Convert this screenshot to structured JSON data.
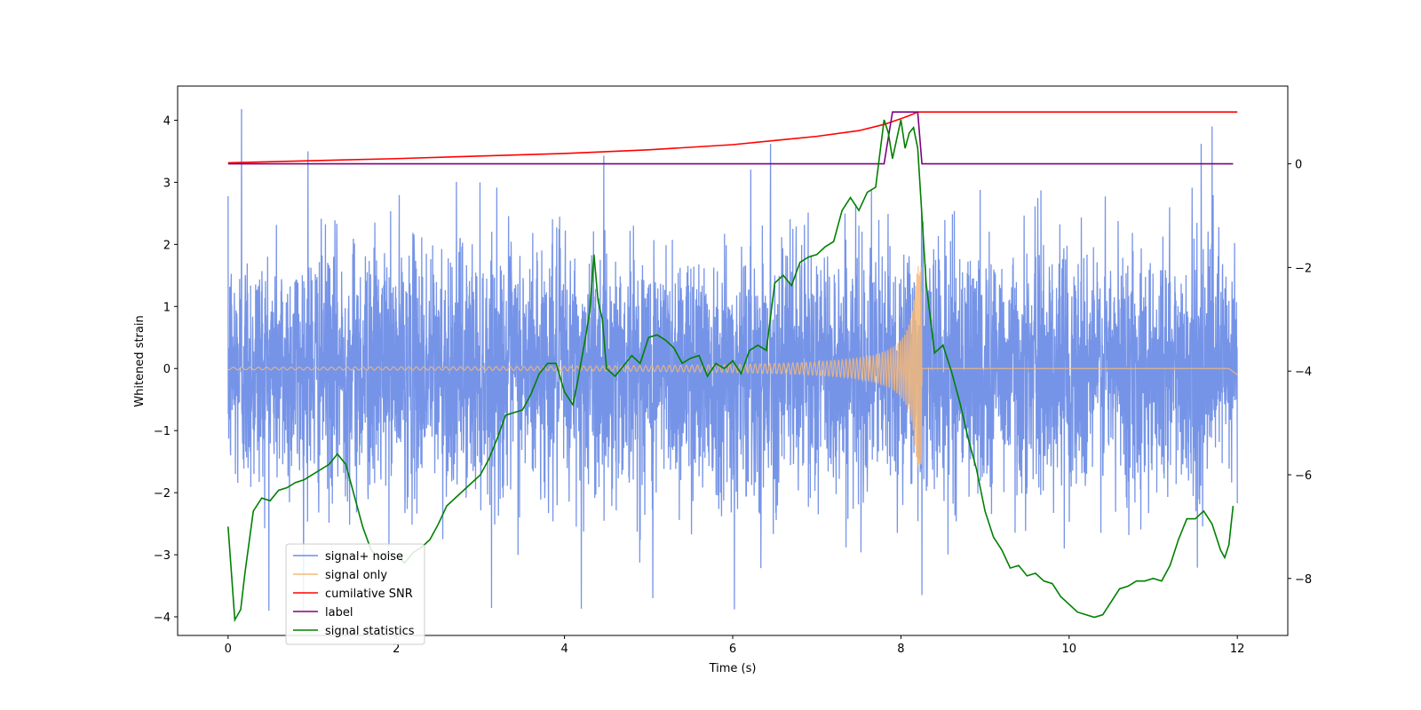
{
  "chart_data": {
    "type": "line",
    "xlabel": "Time (s)",
    "ylabel": "Whitened strain",
    "xlim": [
      -0.6,
      12.6
    ],
    "ylim": [
      -4.3,
      4.55
    ],
    "y2lim": [
      -9.1,
      1.5
    ],
    "xticks": [
      0,
      2,
      4,
      6,
      8,
      10,
      12
    ],
    "yticks": [
      -4,
      -3,
      -2,
      -1,
      0,
      1,
      2,
      3,
      4
    ],
    "y2ticks": [
      -8,
      -6,
      -4,
      -2,
      0
    ],
    "legend_position": "lower-left",
    "series": [
      {
        "name": "signal+ noise",
        "axis": "left",
        "color": "#6f8ee6",
        "noise": {
          "t_start": 0,
          "t_end": 12,
          "sigma": 1.0,
          "spikes_max": [
            [
              0.16,
              4.18
            ],
            [
              0.95,
              3.5
            ],
            [
              6.45,
              3.62
            ],
            [
              11.7,
              3.9
            ]
          ],
          "spikes_min": [
            [
              4.2,
              -3.87
            ],
            [
              6.02,
              -3.88
            ],
            [
              5.05,
              -3.7
            ],
            [
              8.25,
              -3.65
            ]
          ]
        }
      },
      {
        "name": "signal only",
        "axis": "left",
        "color": "#f4b87a",
        "chirp": {
          "t_start": 0,
          "t_merge": 8.25,
          "t_end": 12,
          "amp_start": 0.02,
          "amp_peak": 1.65
        }
      },
      {
        "name": "cumilative SNR",
        "axis": "right",
        "color": "#ff0000",
        "x": [
          0,
          1,
          2,
          3,
          4,
          5,
          6,
          6.5,
          7,
          7.5,
          7.8,
          8.0,
          8.1,
          8.2,
          8.25,
          12
        ],
        "y": [
          0.02,
          0.06,
          0.1,
          0.15,
          0.2,
          0.27,
          0.37,
          0.45,
          0.53,
          0.64,
          0.76,
          0.87,
          0.93,
          1.0,
          1.0,
          1.0
        ]
      },
      {
        "name": "label",
        "axis": "right",
        "color": "#800080",
        "x": [
          0,
          7.8,
          7.9,
          8.2,
          8.25,
          11.95
        ],
        "y": [
          0,
          0,
          1,
          1,
          0,
          0
        ]
      },
      {
        "name": "signal statistics",
        "axis": "right",
        "color": "#008000",
        "x": [
          0,
          0.08,
          0.15,
          0.2,
          0.3,
          0.4,
          0.5,
          0.6,
          0.7,
          0.8,
          0.9,
          1.0,
          1.1,
          1.2,
          1.3,
          1.4,
          1.5,
          1.6,
          1.7,
          1.8,
          1.9,
          2.0,
          2.1,
          2.2,
          2.3,
          2.4,
          2.5,
          2.6,
          2.7,
          2.8,
          2.9,
          3.0,
          3.1,
          3.2,
          3.3,
          3.4,
          3.5,
          3.6,
          3.7,
          3.8,
          3.9,
          4.0,
          4.1,
          4.15,
          4.2,
          4.25,
          4.3,
          4.35,
          4.4,
          4.45,
          4.5,
          4.6,
          4.7,
          4.8,
          4.9,
          5.0,
          5.1,
          5.2,
          5.3,
          5.4,
          5.5,
          5.6,
          5.7,
          5.8,
          5.9,
          6.0,
          6.1,
          6.2,
          6.3,
          6.4,
          6.5,
          6.6,
          6.7,
          6.8,
          6.9,
          7.0,
          7.1,
          7.2,
          7.3,
          7.4,
          7.5,
          7.6,
          7.7,
          7.8,
          7.85,
          7.9,
          8.0,
          8.05,
          8.1,
          8.15,
          8.2,
          8.25,
          8.3,
          8.4,
          8.5,
          8.6,
          8.7,
          8.8,
          8.9,
          9.0,
          9.1,
          9.2,
          9.3,
          9.4,
          9.5,
          9.6,
          9.7,
          9.8,
          9.9,
          10.0,
          10.1,
          10.2,
          10.3,
          10.4,
          10.5,
          10.6,
          10.7,
          10.8,
          10.9,
          11.0,
          11.1,
          11.2,
          11.3,
          11.4,
          11.5,
          11.6,
          11.7,
          11.8,
          11.85,
          11.9,
          11.95
        ],
        "y": [
          -7.0,
          -8.8,
          -8.6,
          -7.9,
          -6.7,
          -6.45,
          -6.5,
          -6.3,
          -6.25,
          -6.15,
          -6.1,
          -6.0,
          -5.9,
          -5.8,
          -5.6,
          -5.8,
          -6.4,
          -7.0,
          -7.45,
          -7.6,
          -7.5,
          -7.55,
          -7.7,
          -7.5,
          -7.4,
          -7.25,
          -6.95,
          -6.6,
          -6.45,
          -6.3,
          -6.15,
          -6.0,
          -5.7,
          -5.3,
          -4.85,
          -4.8,
          -4.75,
          -4.45,
          -4.05,
          -3.85,
          -3.85,
          -4.4,
          -4.65,
          -4.25,
          -3.8,
          -3.35,
          -2.85,
          -1.75,
          -2.65,
          -3.0,
          -3.95,
          -4.1,
          -3.9,
          -3.7,
          -3.85,
          -3.35,
          -3.3,
          -3.4,
          -3.55,
          -3.85,
          -3.75,
          -3.7,
          -4.1,
          -3.85,
          -3.95,
          -3.8,
          -4.05,
          -3.6,
          -3.5,
          -3.6,
          -2.3,
          -2.15,
          -2.35,
          -1.9,
          -1.8,
          -1.75,
          -1.6,
          -1.5,
          -0.9,
          -0.65,
          -0.9,
          -0.55,
          -0.45,
          0.85,
          0.6,
          0.1,
          0.85,
          0.3,
          0.6,
          0.7,
          0.3,
          -1.0,
          -2.3,
          -3.65,
          -3.5,
          -4.0,
          -4.6,
          -5.3,
          -5.9,
          -6.7,
          -7.2,
          -7.45,
          -7.8,
          -7.75,
          -7.95,
          -7.9,
          -8.05,
          -8.1,
          -8.35,
          -8.5,
          -8.65,
          -8.7,
          -8.75,
          -8.7,
          -8.45,
          -8.2,
          -8.15,
          -8.05,
          -8.05,
          -8.0,
          -8.05,
          -7.75,
          -7.25,
          -6.85,
          -6.85,
          -6.7,
          -6.95,
          -7.45,
          -7.6,
          -7.35,
          -6.6
        ]
      }
    ]
  }
}
